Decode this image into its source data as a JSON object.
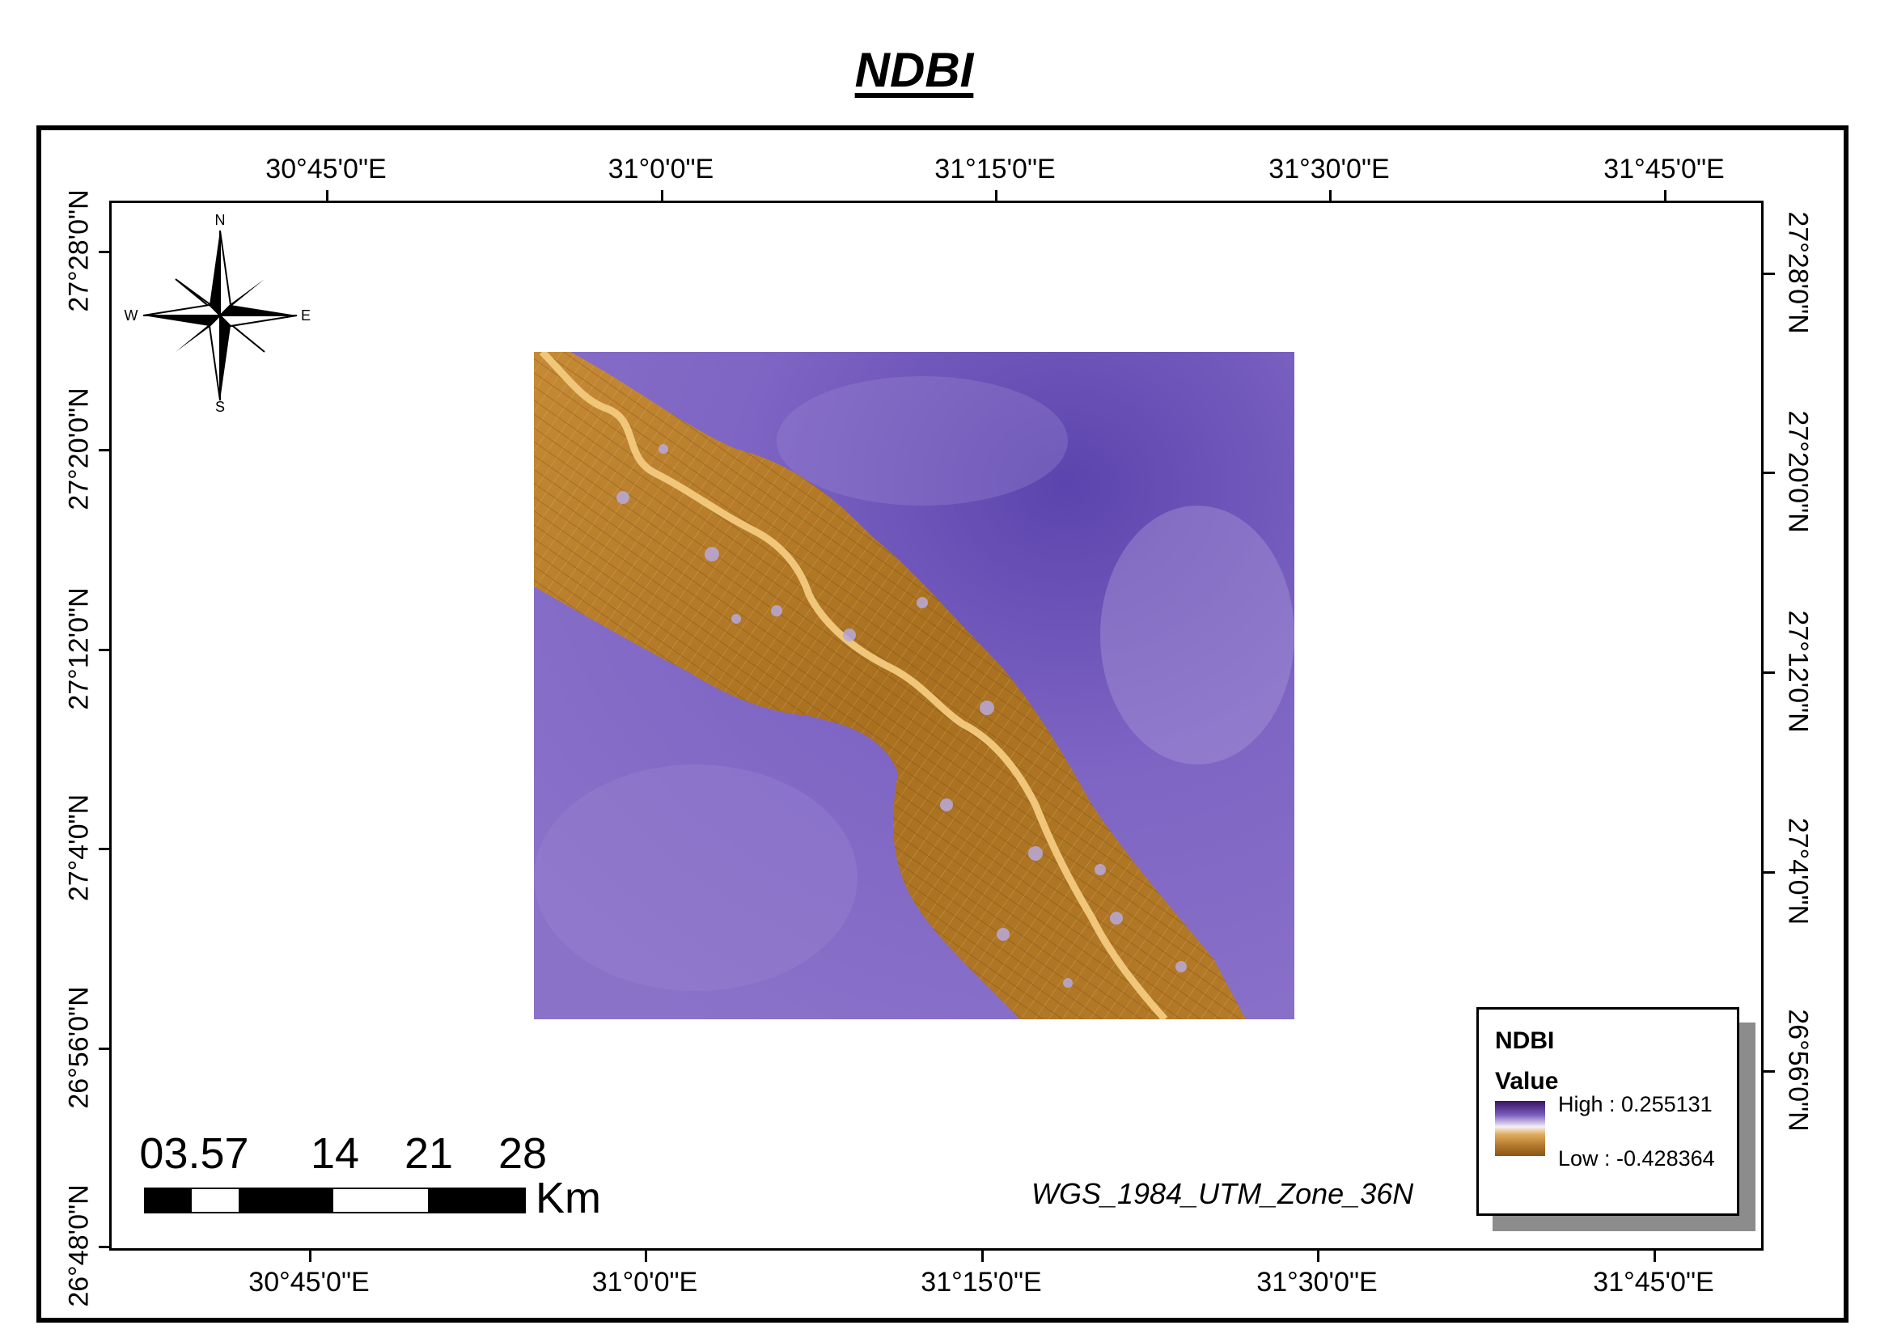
{
  "title": "NDBI",
  "graticule": {
    "lon_top": [
      "30°45'0\"E",
      "31°0'0\"E",
      "31°15'0\"E",
      "31°30'0\"E",
      "31°45'0\"E"
    ],
    "lon_bottom": [
      "30°45'0\"E",
      "31°0'0\"E",
      "31°15'0\"E",
      "31°30'0\"E",
      "31°45'0\"E"
    ],
    "lat_left": [
      "27°28'0\"N",
      "27°20'0\"N",
      "27°12'0\"N",
      "27°4'0\"N",
      "26°56'0\"N",
      "26°48'0\"N"
    ],
    "lat_right": [
      "27°28'0\"N",
      "27°20'0\"N",
      "27°12'0\"N",
      "27°4'0\"N",
      "26°56'0\"N"
    ]
  },
  "north_arrow": {
    "n": "N",
    "s": "S",
    "e": "E",
    "w": "W",
    "icon": "compass-rose-icon"
  },
  "scale_bar": {
    "labels": [
      "03.57",
      "14",
      "21",
      "28"
    ],
    "unit": "Km"
  },
  "projection": "WGS_1984_UTM_Zone_36N",
  "legend": {
    "title": "NDBI",
    "subtitle": "Value",
    "high": "High : 0.255131",
    "low": "Low : -0.428364",
    "colors": {
      "high": "#3a1460",
      "mid": "#f4f0f6",
      "low": "#8a5518"
    }
  }
}
